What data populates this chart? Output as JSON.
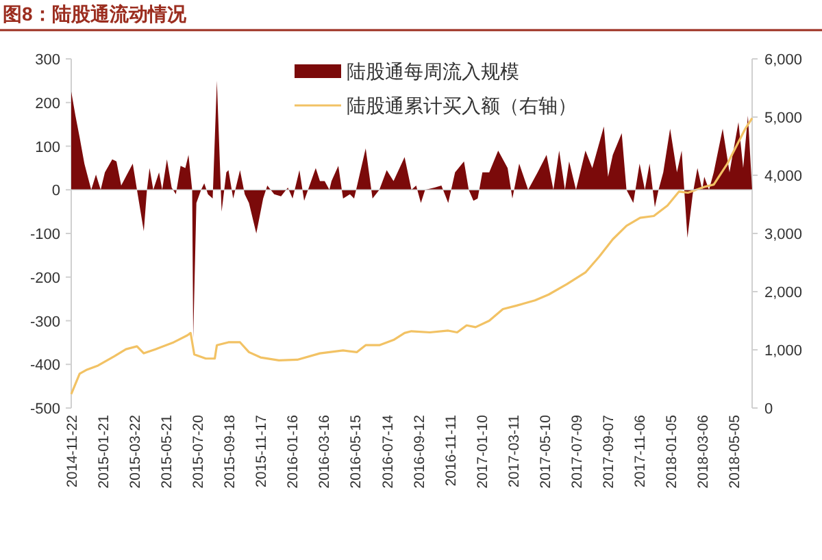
{
  "chart_data": {
    "type": "area",
    "title": "图8：陆股通流动情况",
    "xlim": [
      "2014-11-22",
      "2018-06-09"
    ],
    "xticks": [
      "2014-11-22",
      "2015-01-21",
      "2015-03-22",
      "2015-05-21",
      "2015-07-20",
      "2015-09-18",
      "2015-11-17",
      "2016-01-16",
      "2016-03-16",
      "2016-05-15",
      "2016-07-14",
      "2016-09-12",
      "2016-11-11",
      "2017-01-10",
      "2017-03-11",
      "2017-05-10",
      "2017-07-09",
      "2017-09-07",
      "2017-11-06",
      "2018-01-05",
      "2018-03-06",
      "2018-05-05"
    ],
    "ylim": [
      -500,
      300
    ],
    "yticks": [
      -500,
      -400,
      -300,
      -200,
      -100,
      0,
      100,
      200,
      300
    ],
    "y2lim": [
      0,
      6000
    ],
    "y2ticks": [
      {
        "value": 0,
        "label": "0"
      },
      {
        "value": 1000,
        "label": "1,000"
      },
      {
        "value": 2000,
        "label": "2,000"
      },
      {
        "value": 3000,
        "label": "3,000"
      },
      {
        "value": 4000,
        "label": "4,000"
      },
      {
        "value": 5000,
        "label": "5,000"
      },
      {
        "value": 6000,
        "label": "6,000"
      }
    ],
    "legend": "top",
    "series": [
      {
        "name": "陆股通每周流入规模",
        "color": "#7b0a0a",
        "x": [
          "2014-11-22",
          "2014-11-30",
          "2014-12-08",
          "2014-12-17",
          "2014-12-30",
          "2015-01-08",
          "2015-01-17",
          "2015-01-25",
          "2015-02-08",
          "2015-02-16",
          "2015-02-25",
          "2015-03-19",
          "2015-03-27",
          "2015-04-09",
          "2015-04-15",
          "2015-04-20",
          "2015-04-27",
          "2015-05-08",
          "2015-05-14",
          "2015-05-23",
          "2015-06-01",
          "2015-06-09",
          "2015-06-18",
          "2015-06-27",
          "2015-07-03",
          "2015-07-10",
          "2015-07-12",
          "2015-07-18",
          "2015-07-27",
          "2015-08-02",
          "2015-08-09",
          "2015-08-18",
          "2015-08-26",
          "2015-09-04",
          "2015-09-13",
          "2015-09-17",
          "2015-09-26",
          "2015-10-09",
          "2015-10-18",
          "2015-10-26",
          "2015-11-09",
          "2015-11-22",
          "2015-11-30",
          "2015-12-13",
          "2015-12-26",
          "2016-01-08",
          "2016-01-17",
          "2016-01-30",
          "2016-02-08",
          "2016-03-01",
          "2016-03-09",
          "2016-03-18",
          "2016-03-27",
          "2016-03-31",
          "2016-04-13",
          "2016-04-22",
          "2016-05-05",
          "2016-05-13",
          "2016-06-04",
          "2016-06-17",
          "2016-06-30",
          "2016-07-14",
          "2016-07-27",
          "2016-08-17",
          "2016-08-30",
          "2016-09-08",
          "2016-09-17",
          "2016-09-25",
          "2016-10-13",
          "2016-10-26",
          "2016-11-08",
          "2016-11-21",
          "2016-12-08",
          "2016-12-17",
          "2016-12-26",
          "2017-01-03",
          "2017-01-12",
          "2017-01-25",
          "2017-02-11",
          "2017-03-01",
          "2017-03-10",
          "2017-03-23",
          "2017-04-09",
          "2017-04-27",
          "2017-05-14",
          "2017-05-27",
          "2017-06-07",
          "2017-06-18",
          "2017-06-26",
          "2017-07-09",
          "2017-07-27",
          "2017-08-09",
          "2017-08-31",
          "2017-09-08",
          "2017-09-17",
          "2017-10-04",
          "2017-10-13",
          "2017-10-26",
          "2017-11-07",
          "2017-11-17",
          "2017-11-26",
          "2017-12-06",
          "2017-12-13",
          "2017-12-22",
          "2018-01-04",
          "2018-01-17",
          "2018-01-26",
          "2018-02-06",
          "2018-02-16",
          "2018-02-25",
          "2018-03-06",
          "2018-03-10",
          "2018-03-19",
          "2018-03-28",
          "2018-04-14",
          "2018-04-27",
          "2018-05-14",
          "2018-05-23",
          "2018-06-01",
          "2018-06-09"
        ],
        "values": [
          225,
          170,
          120,
          60,
          0,
          35,
          0,
          40,
          70,
          65,
          10,
          60,
          0,
          -95,
          0,
          50,
          0,
          40,
          0,
          70,
          5,
          -10,
          55,
          50,
          80,
          0,
          -340,
          -30,
          0,
          15,
          -10,
          -20,
          250,
          -50,
          40,
          45,
          -20,
          45,
          -10,
          -30,
          -100,
          -20,
          10,
          -10,
          -15,
          5,
          -20,
          45,
          -25,
          50,
          20,
          20,
          0,
          20,
          55,
          -20,
          -10,
          -20,
          95,
          -20,
          0,
          45,
          20,
          75,
          0,
          10,
          -30,
          0,
          5,
          10,
          -30,
          40,
          65,
          0,
          -25,
          -20,
          40,
          40,
          90,
          50,
          -20,
          60,
          0,
          40,
          80,
          0,
          90,
          0,
          65,
          0,
          90,
          50,
          145,
          30,
          80,
          130,
          0,
          -30,
          60,
          0,
          60,
          -40,
          0,
          40,
          140,
          40,
          90,
          -110,
          -10,
          50,
          0,
          30,
          0,
          40,
          140,
          40,
          155,
          50,
          170,
          0
        ]
      },
      {
        "name": "陆股通累计买入额（右轴）",
        "type": "line",
        "axis": "y2",
        "color": "#f2c264",
        "x": [
          "2014-11-22",
          "2014-12-08",
          "2014-12-22",
          "2015-01-12",
          "2015-02-12",
          "2015-03-06",
          "2015-03-27",
          "2015-04-09",
          "2015-05-01",
          "2015-06-05",
          "2015-07-01",
          "2015-07-07",
          "2015-07-14",
          "2015-08-05",
          "2015-08-22",
          "2015-08-26",
          "2015-09-17",
          "2015-10-09",
          "2015-10-26",
          "2015-11-17",
          "2015-12-22",
          "2016-01-26",
          "2016-03-09",
          "2016-04-22",
          "2016-05-18",
          "2016-06-04",
          "2016-06-30",
          "2016-07-27",
          "2016-08-17",
          "2016-08-30",
          "2016-10-04",
          "2016-11-08",
          "2016-11-25",
          "2016-12-13",
          "2016-12-30",
          "2017-01-25",
          "2017-02-20",
          "2017-03-18",
          "2017-04-22",
          "2017-05-18",
          "2017-06-22",
          "2017-07-27",
          "2017-08-22",
          "2017-09-17",
          "2017-10-13",
          "2017-11-08",
          "2017-12-04",
          "2017-12-30",
          "2018-01-21",
          "2018-02-07",
          "2018-03-10",
          "2018-03-28",
          "2018-04-23",
          "2018-05-27",
          "2018-06-09"
        ],
        "values": [
          240,
          590,
          660,
          730,
          890,
          1010,
          1060,
          940,
          1010,
          1130,
          1250,
          1290,
          920,
          850,
          850,
          1080,
          1130,
          1130,
          960,
          870,
          820,
          830,
          940,
          990,
          960,
          1080,
          1080,
          1170,
          1290,
          1320,
          1300,
          1330,
          1300,
          1420,
          1390,
          1500,
          1700,
          1760,
          1850,
          1950,
          2130,
          2330,
          2600,
          2900,
          3130,
          3270,
          3300,
          3480,
          3720,
          3700,
          3800,
          3840,
          4200,
          4800,
          4980
        ]
      }
    ]
  }
}
